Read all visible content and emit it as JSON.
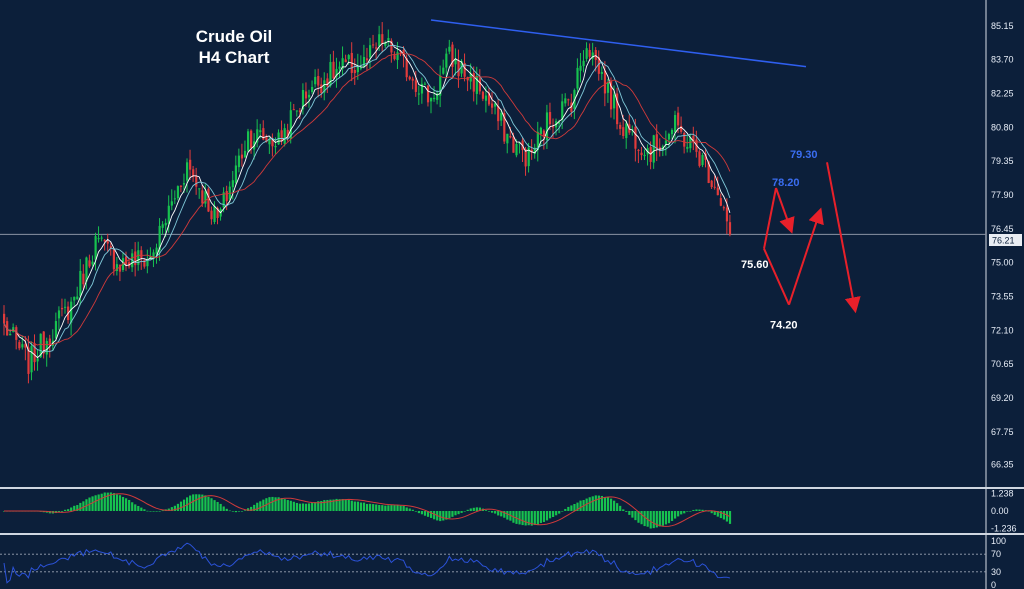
{
  "title": {
    "line1": "Crude Oil",
    "line2": "H4 Chart"
  },
  "colors": {
    "background": "#0c1f3a",
    "bull_candle": "#17c24f",
    "bear_candle": "#e23b3b",
    "ma_fast": "#ffffff",
    "ma_mid": "#7fc8d8",
    "ma_slow": "#d03a3a",
    "trendline": "#2f5ff0",
    "projection_arrow": "#e8202a",
    "rsi_line": "#2b52d8",
    "macd_hist": "#17c24f",
    "macd_signal": "#d03a3a",
    "panel_separator": "#cfd6e0"
  },
  "chart_data": {
    "type": "candlestick",
    "instrument": "Crude Oil",
    "timeframe": "H4",
    "main_panel": {
      "ylim": [
        65.6,
        86.0
      ],
      "y_ticks": [
        "85.15",
        "83.70",
        "82.25",
        "80.80",
        "79.35",
        "77.90",
        "76.45",
        "75.00",
        "73.55",
        "72.10",
        "70.65",
        "69.20",
        "67.75",
        "66.35"
      ],
      "current_price": "76.21",
      "trendline": [
        {
          "bar": 0,
          "price": 85.4
        },
        {
          "bar": 1,
          "price": 83.4
        }
      ],
      "annotations": [
        {
          "text": "79.30",
          "price": 79.65,
          "style": "blue"
        },
        {
          "text": "78.20",
          "price": 78.45,
          "style": "blue"
        },
        {
          "text": "75.60",
          "price": 74.95,
          "style": "white"
        },
        {
          "text": "74.20",
          "price": 72.35,
          "style": "white"
        }
      ],
      "projection_path": [
        {
          "step": 0,
          "price": 75.6
        },
        {
          "step": 1,
          "price": 78.2
        },
        {
          "step": 2,
          "price": 76.4
        },
        {
          "step": 3,
          "price": 75.6
        },
        {
          "step": 4,
          "price": 73.2
        },
        {
          "step": 5,
          "price": 77.2
        },
        {
          "step": 6,
          "price": 79.3
        },
        {
          "step": 7,
          "price": 73.0
        }
      ],
      "anchors": [
        {
          "bar": 0,
          "close": 72.3
        },
        {
          "bar": 8,
          "close": 70.7
        },
        {
          "bar": 22,
          "close": 73.2
        },
        {
          "bar": 30,
          "close": 75.9
        },
        {
          "bar": 38,
          "close": 75.0
        },
        {
          "bar": 48,
          "close": 75.2
        },
        {
          "bar": 60,
          "close": 79.2
        },
        {
          "bar": 70,
          "close": 76.8
        },
        {
          "bar": 80,
          "close": 80.5
        },
        {
          "bar": 90,
          "close": 80.2
        },
        {
          "bar": 100,
          "close": 82.5
        },
        {
          "bar": 110,
          "close": 83.3
        },
        {
          "bar": 118,
          "close": 83.5
        },
        {
          "bar": 124,
          "close": 84.5
        },
        {
          "bar": 132,
          "close": 83.3
        },
        {
          "bar": 140,
          "close": 82.0
        },
        {
          "bar": 146,
          "close": 83.8
        },
        {
          "bar": 156,
          "close": 82.5
        },
        {
          "bar": 166,
          "close": 80.2
        },
        {
          "bar": 172,
          "close": 79.5
        },
        {
          "bar": 178,
          "close": 81.0
        },
        {
          "bar": 186,
          "close": 82.0
        },
        {
          "bar": 191,
          "close": 84.5
        },
        {
          "bar": 196,
          "close": 83.0
        },
        {
          "bar": 202,
          "close": 81.0
        },
        {
          "bar": 212,
          "close": 79.8
        },
        {
          "bar": 220,
          "close": 80.8
        },
        {
          "bar": 228,
          "close": 79.6
        },
        {
          "bar": 234,
          "close": 78.2
        },
        {
          "bar": 238,
          "close": 76.21
        }
      ]
    },
    "macd_panel": {
      "ylim": [
        -1.5,
        1.5
      ],
      "y_ticks": [
        "1.238",
        "0.00",
        "-1.236"
      ]
    },
    "rsi_panel": {
      "ylim": [
        0,
        100
      ],
      "y_ticks": [
        "100",
        "70",
        "30",
        "0"
      ],
      "levels": [
        70,
        30
      ]
    }
  }
}
